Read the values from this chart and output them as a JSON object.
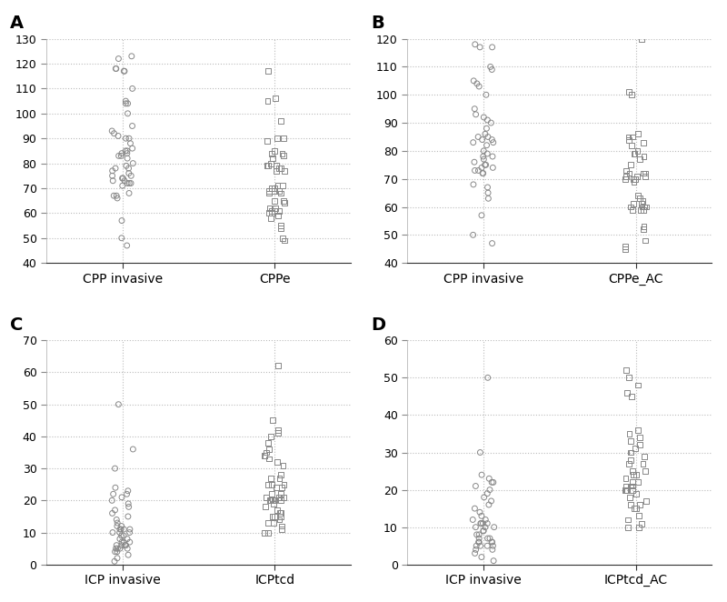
{
  "panels": [
    {
      "label": "A",
      "x_labels": [
        "CPP invasive",
        "CPPe"
      ],
      "ylim": [
        40,
        130
      ],
      "yticks": [
        40,
        50,
        60,
        70,
        80,
        90,
        100,
        110,
        120,
        130
      ],
      "series1": [
        123,
        122,
        118,
        118,
        117,
        117,
        110,
        105,
        104,
        104,
        100,
        95,
        93,
        92,
        91,
        90,
        90,
        88,
        86,
        85,
        85,
        84,
        84,
        83,
        83,
        82,
        80,
        79,
        78,
        78,
        77,
        76,
        75,
        75,
        74,
        74,
        73,
        73,
        72,
        72,
        72,
        71,
        68,
        67,
        67,
        66,
        57,
        50,
        47
      ],
      "series2": [
        117,
        106,
        105,
        97,
        90,
        90,
        89,
        85,
        84,
        84,
        83,
        82,
        80,
        79,
        79,
        79,
        78,
        78,
        77,
        77,
        71,
        71,
        70,
        70,
        69,
        69,
        69,
        68,
        68,
        65,
        65,
        64,
        62,
        62,
        61,
        61,
        61,
        60,
        60,
        59,
        58,
        55,
        54,
        50,
        49
      ],
      "marker1": "o",
      "marker2": "s"
    },
    {
      "label": "B",
      "x_labels": [
        "CPP invasive",
        "CPPe_AC"
      ],
      "ylim": [
        40,
        120
      ],
      "yticks": [
        40,
        50,
        60,
        70,
        80,
        90,
        100,
        110,
        120
      ],
      "series1": [
        118,
        117,
        117,
        110,
        109,
        105,
        104,
        103,
        100,
        95,
        93,
        92,
        91,
        90,
        88,
        86,
        85,
        85,
        84,
        84,
        83,
        83,
        82,
        80,
        79,
        78,
        78,
        77,
        76,
        75,
        75,
        74,
        74,
        73,
        73,
        72,
        72,
        68,
        67,
        65,
        63,
        57,
        50,
        47
      ],
      "series2": [
        120,
        101,
        100,
        86,
        85,
        85,
        84,
        83,
        82,
        80,
        79,
        79,
        78,
        77,
        75,
        73,
        72,
        72,
        72,
        71,
        71,
        71,
        70,
        70,
        70,
        69,
        64,
        63,
        62,
        61,
        61,
        60,
        60,
        60,
        60,
        59,
        59,
        59,
        53,
        52,
        48,
        46,
        45
      ],
      "marker1": "o",
      "marker2": "s"
    },
    {
      "label": "C",
      "x_labels": [
        "ICP invasive",
        "ICPtcd"
      ],
      "ylim": [
        0,
        70
      ],
      "yticks": [
        0,
        10,
        20,
        30,
        40,
        50,
        60,
        70
      ],
      "series1": [
        50,
        36,
        30,
        24,
        23,
        22,
        22,
        21,
        20,
        19,
        18,
        17,
        16,
        15,
        14,
        13,
        12,
        12,
        11,
        11,
        11,
        11,
        10,
        10,
        10,
        9,
        9,
        8,
        8,
        7,
        7,
        7,
        6,
        6,
        6,
        6,
        5,
        5,
        5,
        5,
        4,
        4,
        3,
        2,
        1
      ],
      "series2": [
        62,
        45,
        42,
        41,
        40,
        38,
        36,
        35,
        34,
        34,
        33,
        33,
        32,
        31,
        28,
        27,
        27,
        25,
        25,
        25,
        24,
        24,
        22,
        22,
        21,
        21,
        21,
        20,
        20,
        20,
        20,
        20,
        19,
        18,
        17,
        16,
        16,
        15,
        15,
        15,
        14,
        13,
        13,
        12,
        11,
        10,
        10
      ],
      "marker1": "o",
      "marker2": "s"
    },
    {
      "label": "D",
      "x_labels": [
        "ICP invasive",
        "ICPtcd_AC"
      ],
      "ylim": [
        0,
        60
      ],
      "yticks": [
        0,
        10,
        20,
        30,
        40,
        50,
        60
      ],
      "series1": [
        50,
        30,
        24,
        23,
        22,
        22,
        21,
        20,
        19,
        18,
        17,
        16,
        15,
        14,
        13,
        12,
        12,
        11,
        11,
        11,
        11,
        10,
        10,
        10,
        9,
        9,
        8,
        8,
        7,
        7,
        7,
        6,
        6,
        6,
        6,
        5,
        5,
        5,
        5,
        4,
        4,
        3,
        2,
        1
      ],
      "series2": [
        52,
        50,
        48,
        46,
        45,
        36,
        35,
        34,
        33,
        32,
        31,
        30,
        30,
        29,
        28,
        27,
        27,
        25,
        25,
        24,
        24,
        23,
        22,
        22,
        21,
        21,
        21,
        20,
        20,
        20,
        20,
        20,
        19,
        18,
        17,
        16,
        16,
        15,
        15,
        13,
        12,
        11,
        10,
        10
      ],
      "marker1": "o",
      "marker2": "s"
    }
  ],
  "marker_color": "#888888",
  "marker_size": 18,
  "marker_linewidth": 0.7,
  "vline_color": "#bbbbbb",
  "vline_style": ":",
  "grid_color": "#bbbbbb",
  "grid_style": ":",
  "grid_linewidth": 0.8,
  "tick_fontsize": 9,
  "xlabel_fontsize": 10,
  "panel_label_fontsize": 14,
  "jitter_amount": 0.07,
  "bg_color": "#ffffff",
  "spine_color": "#333333"
}
